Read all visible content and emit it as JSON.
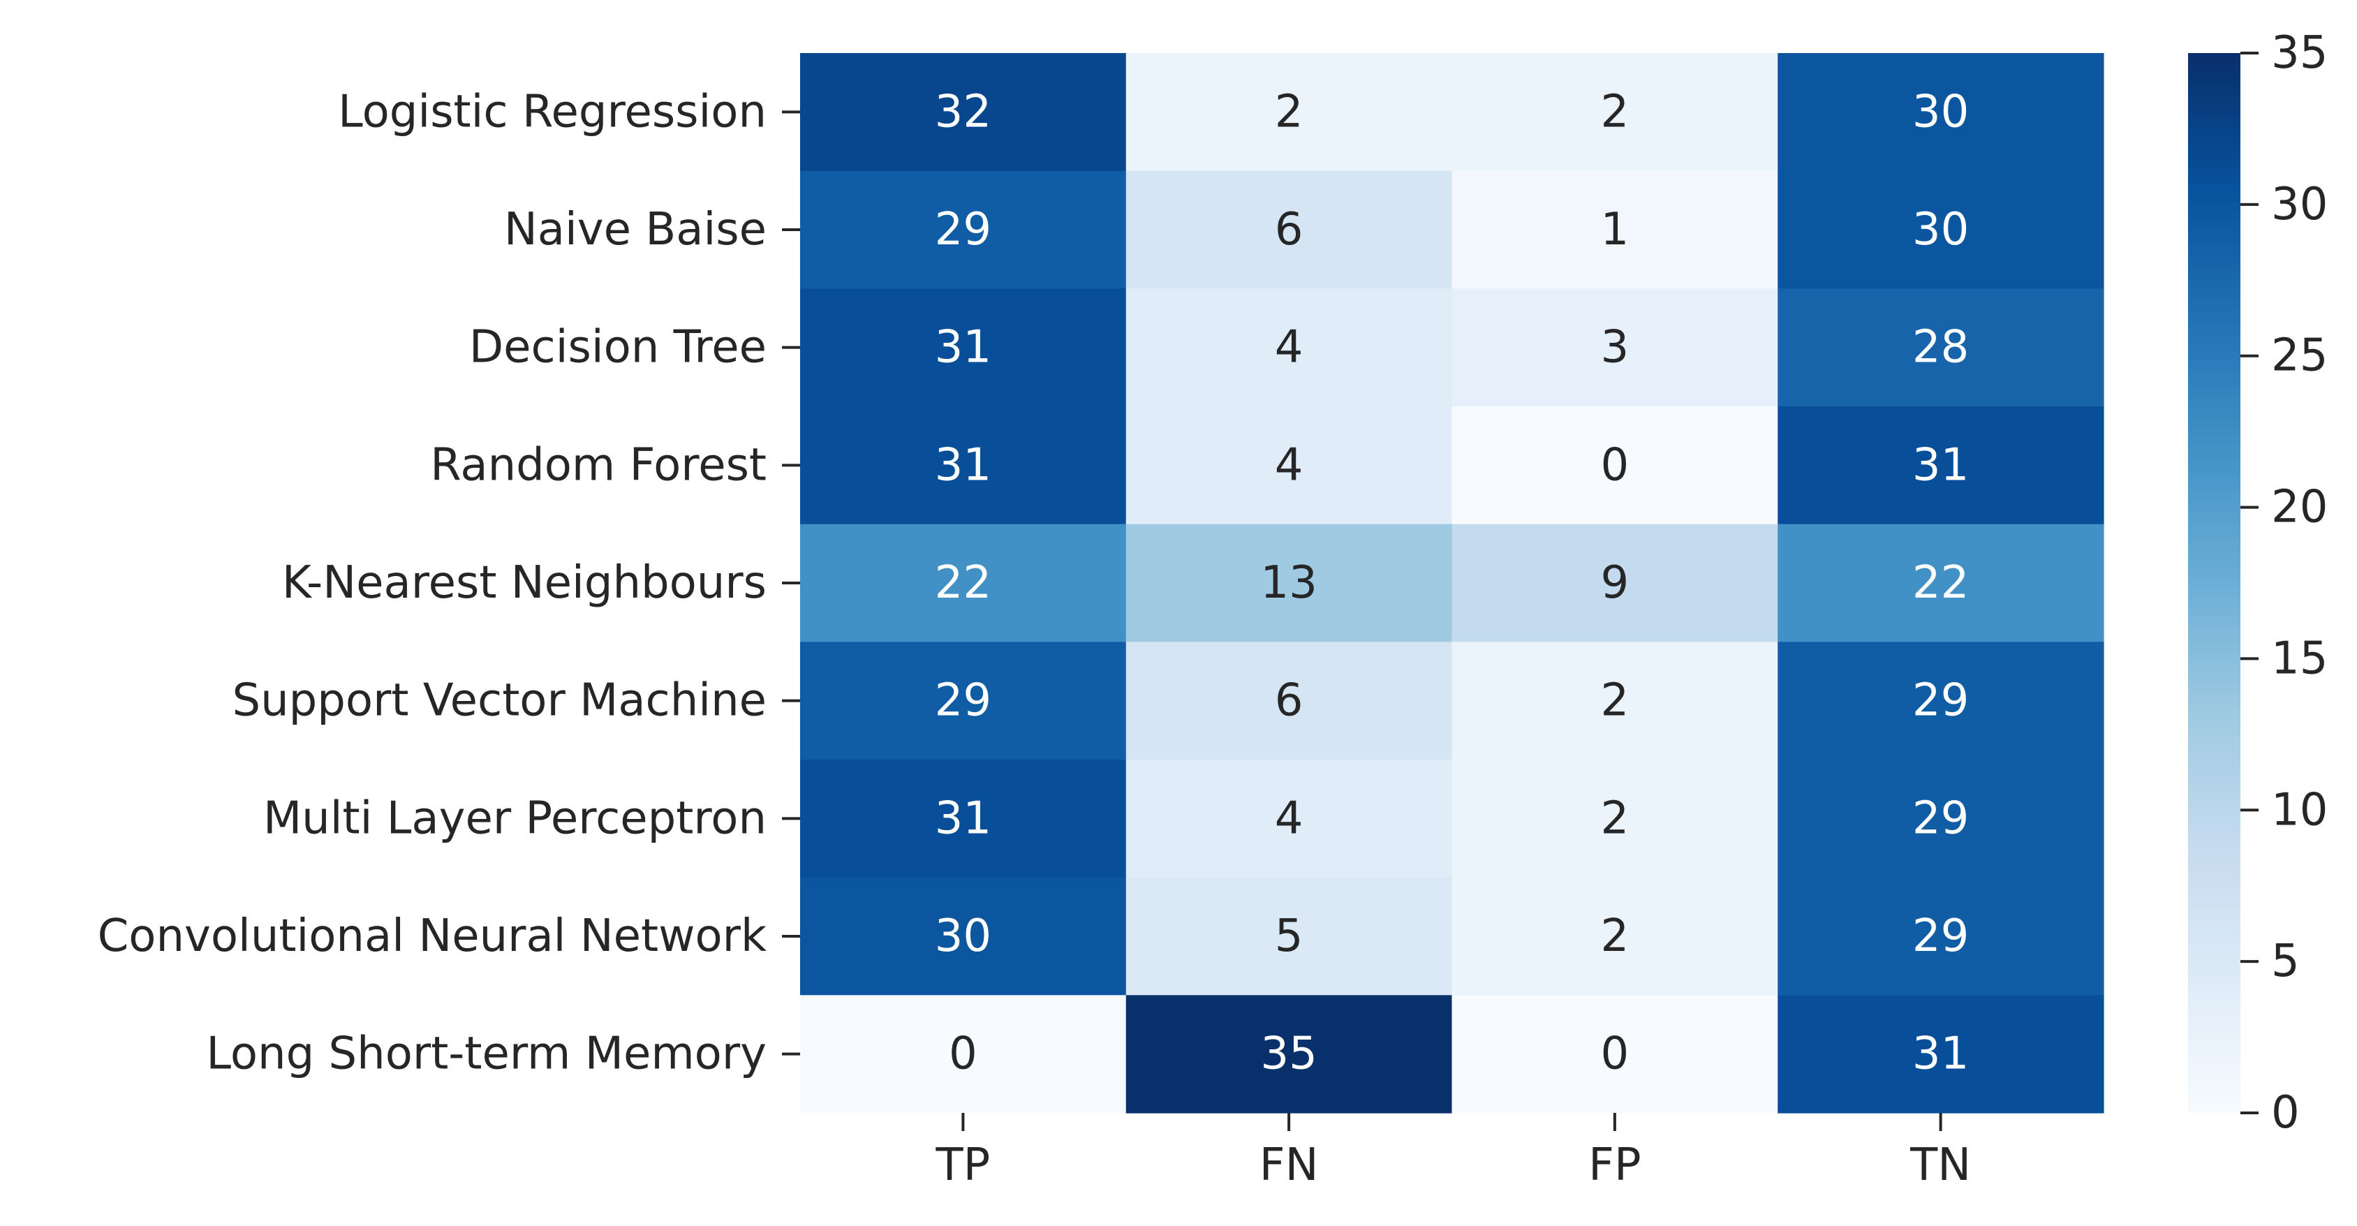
{
  "chart_data": {
    "type": "heatmap",
    "title": "",
    "xlabel": "",
    "ylabel": "",
    "columns": [
      "TP",
      "FN",
      "FP",
      "TN"
    ],
    "rows": [
      "Logistic Regression",
      "Naive Baise",
      "Decision Tree",
      "Random Forest",
      "K-Nearest Neighbours",
      "Support Vector Machine",
      "Multi Layer Perceptron",
      "Convolutional Neural Network",
      "Long Short-term Memory"
    ],
    "values": [
      [
        32,
        2,
        2,
        30
      ],
      [
        29,
        6,
        1,
        30
      ],
      [
        31,
        4,
        3,
        28
      ],
      [
        31,
        4,
        0,
        31
      ],
      [
        22,
        13,
        9,
        22
      ],
      [
        29,
        6,
        2,
        29
      ],
      [
        31,
        4,
        2,
        29
      ],
      [
        30,
        5,
        2,
        29
      ],
      [
        0,
        35,
        0,
        31
      ]
    ],
    "colorbar": {
      "range": [
        0,
        35
      ],
      "ticks": [
        0,
        5,
        10,
        15,
        20,
        25,
        30,
        35
      ],
      "colormap": "Blues",
      "position": "right"
    },
    "colors": {
      "low": "#f7fbff",
      "high": "#08306b",
      "text_light": "#ffffff",
      "text_dark": "#262626",
      "axis": "#262626"
    }
  }
}
